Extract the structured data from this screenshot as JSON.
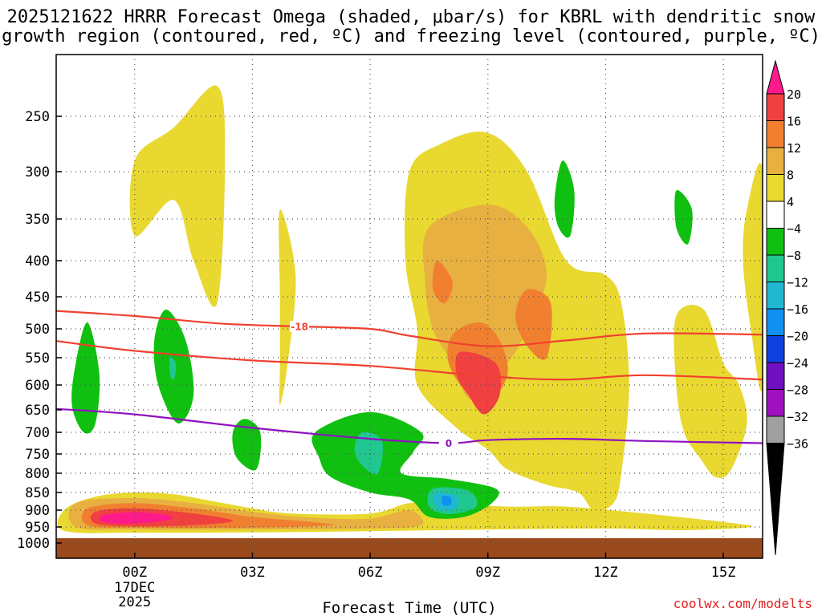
{
  "chart_data": {
    "type": "heatmap",
    "title_line1": "2025121622 HRRR Forecast Omega (shaded, μbar/s) for KBRL with dendritic snow",
    "title_line2": "growth region (contoured, red, ºC) and freezing level (contoured, purple, ºC)",
    "xlabel": "Forecast Time (UTC)",
    "credit": "coolwx.com/modelts",
    "x_range_hours": [
      -2,
      16
    ],
    "x_ticks": [
      {
        "hour": 0,
        "label": "00Z",
        "sub1": "17DEC",
        "sub2": "2025"
      },
      {
        "hour": 3,
        "label": "03Z"
      },
      {
        "hour": 6,
        "label": "06Z"
      },
      {
        "hour": 9,
        "label": "09Z"
      },
      {
        "hour": 12,
        "label": "12Z"
      },
      {
        "hour": 15,
        "label": "15Z"
      }
    ],
    "y_ticks_mb": [
      250,
      300,
      350,
      400,
      450,
      500,
      550,
      600,
      650,
      700,
      750,
      800,
      850,
      900,
      950,
      1000
    ],
    "y_range_mb": [
      200,
      1000
    ],
    "surface_pressure_mb": 985,
    "colorbar": {
      "labels": [
        "20",
        "16",
        "12",
        "8",
        "4",
        "−4",
        "−8",
        "−12",
        "−16",
        "−20",
        "−24",
        "−28",
        "−32",
        "−36"
      ],
      "colors": [
        "#ff1a8c",
        "#f04040",
        "#f08030",
        "#e8b040",
        "#e8d830",
        "#ffffff",
        "#10c010",
        "#20c890",
        "#20b8d0",
        "#1090f0",
        "#1040e0",
        "#7010c0",
        "#a010c0",
        "#a0a0a0",
        "#000000"
      ]
    },
    "contours": [
      {
        "name": "dgz-top",
        "label": "-18",
        "color": "#f04030",
        "points": [
          [
            -2,
            472
          ],
          [
            0,
            480
          ],
          [
            2,
            491
          ],
          [
            3,
            494
          ],
          [
            4,
            496
          ],
          [
            6,
            500
          ],
          [
            7,
            512
          ],
          [
            9,
            530
          ],
          [
            11,
            520
          ],
          [
            13,
            508
          ],
          [
            16,
            510
          ]
        ]
      },
      {
        "name": "dgz-bottom",
        "label": "",
        "color": "#f04030",
        "points": [
          [
            -2,
            521
          ],
          [
            0,
            538
          ],
          [
            3,
            555
          ],
          [
            6,
            565
          ],
          [
            9,
            584
          ],
          [
            11,
            590
          ],
          [
            13,
            582
          ],
          [
            16,
            590
          ]
        ]
      },
      {
        "name": "freezing-level",
        "label": "0",
        "color": "#9010c0",
        "points": [
          [
            -2,
            648
          ],
          [
            0,
            660
          ],
          [
            3,
            690
          ],
          [
            6,
            715
          ],
          [
            8,
            725
          ],
          [
            9,
            718
          ],
          [
            11,
            715
          ],
          [
            13,
            720
          ],
          [
            16,
            725
          ]
        ]
      }
    ],
    "shaded_regions": [
      {
        "omega_range": "4 to 8",
        "color": "#e8d830",
        "points": [
          [
            0,
            290
          ],
          [
            1,
            260
          ],
          [
            2.1,
            220
          ],
          [
            2.3,
            290
          ],
          [
            2.1,
            460
          ],
          [
            1.5,
            400
          ],
          [
            1,
            330
          ],
          [
            0,
            370
          ]
        ]
      },
      {
        "omega_range": "4 to 8",
        "color": "#e8d830",
        "points": [
          [
            3.7,
            340
          ],
          [
            4.1,
            420
          ],
          [
            3.9,
            560
          ],
          [
            3.7,
            640
          ],
          [
            3.7,
            560
          ],
          [
            3.7,
            450
          ]
        ]
      },
      {
        "omega_range": "4 to 8",
        "color": "#e8d830",
        "points": [
          [
            7,
            300
          ],
          [
            7.8,
            275
          ],
          [
            9,
            265
          ],
          [
            10,
            300
          ],
          [
            11,
            400
          ],
          [
            12,
            420
          ],
          [
            12.4,
            460
          ],
          [
            12.6,
            600
          ],
          [
            12.4,
            800
          ],
          [
            12.2,
            880
          ],
          [
            11.7,
            900
          ],
          [
            11.3,
            850
          ],
          [
            10.5,
            830
          ],
          [
            9.5,
            790
          ],
          [
            9,
            740
          ],
          [
            8.2,
            690
          ],
          [
            7.2,
            600
          ],
          [
            7.2,
            500
          ],
          [
            6.9,
            400
          ]
        ]
      },
      {
        "omega_range": "4 to 8",
        "color": "#e8d830",
        "points": [
          [
            -1.8,
            900
          ],
          [
            -1,
            862
          ],
          [
            0,
            850
          ],
          [
            1,
            855
          ],
          [
            2,
            875
          ],
          [
            3,
            895
          ],
          [
            4,
            910
          ],
          [
            6,
            910
          ],
          [
            7,
            880
          ],
          [
            8,
            880
          ],
          [
            9.5,
            890
          ],
          [
            11,
            890
          ],
          [
            13,
            910
          ],
          [
            15,
            935
          ],
          [
            15.7,
            950
          ],
          [
            14,
            960
          ],
          [
            12,
            955
          ],
          [
            9,
            958
          ],
          [
            6,
            963
          ],
          [
            3,
            967
          ],
          [
            0,
            968
          ],
          [
            -1.8,
            962
          ]
        ]
      },
      {
        "omega_range": "4 to 8",
        "color": "#e8d830",
        "points": [
          [
            13.8,
            480
          ],
          [
            14.5,
            470
          ],
          [
            15,
            560
          ],
          [
            15.4,
            600
          ],
          [
            15.6,
            680
          ],
          [
            15.2,
            790
          ],
          [
            14.8,
            810
          ],
          [
            14.4,
            760
          ],
          [
            14,
            700
          ],
          [
            13.8,
            600
          ]
        ]
      },
      {
        "omega_range": "4 to 8",
        "color": "#e8d830",
        "points": [
          [
            15.6,
            340
          ],
          [
            16,
            300
          ],
          [
            16,
            600
          ],
          [
            15.7,
            500
          ],
          [
            15.5,
            400
          ]
        ]
      },
      {
        "omega_range": "8 to 12",
        "color": "#e8b040",
        "points": [
          [
            7.5,
            360
          ],
          [
            9,
            335
          ],
          [
            10,
            360
          ],
          [
            10.5,
            420
          ],
          [
            10,
            500
          ],
          [
            9.5,
            560
          ],
          [
            8.6,
            630
          ],
          [
            8.1,
            560
          ],
          [
            7.6,
            500
          ],
          [
            7.4,
            430
          ]
        ]
      },
      {
        "omega_range": "8 to 12",
        "color": "#e8b040",
        "points": [
          [
            -1.5,
            880
          ],
          [
            0,
            866
          ],
          [
            1.5,
            880
          ],
          [
            3,
            905
          ],
          [
            4.5,
            922
          ],
          [
            6,
            925
          ],
          [
            7,
            900
          ],
          [
            7.3,
            945
          ],
          [
            6,
            955
          ],
          [
            3,
            958
          ],
          [
            0,
            958
          ],
          [
            -1.5,
            950
          ]
        ]
      },
      {
        "omega_range": "12 to 16",
        "color": "#f08030",
        "points": [
          [
            10,
            440
          ],
          [
            10.6,
            460
          ],
          [
            10.5,
            550
          ],
          [
            10,
            530
          ],
          [
            9.7,
            480
          ]
        ]
      },
      {
        "omega_range": "12 to 16",
        "color": "#f08030",
        "points": [
          [
            8.1,
            510
          ],
          [
            8.8,
            490
          ],
          [
            9.3,
            520
          ],
          [
            9.5,
            580
          ],
          [
            9,
            640
          ],
          [
            8.5,
            620
          ],
          [
            8,
            560
          ]
        ]
      },
      {
        "omega_range": "12 to 16",
        "color": "#f08030",
        "points": [
          [
            -1.2,
            895
          ],
          [
            0,
            880
          ],
          [
            1.5,
            895
          ],
          [
            3,
            920
          ],
          [
            4.5,
            935
          ],
          [
            5,
            945
          ],
          [
            3,
            952
          ],
          [
            0,
            952
          ],
          [
            -1.2,
            945
          ]
        ]
      },
      {
        "omega_range": "12 to 16",
        "color": "#f08030",
        "points": [
          [
            7.7,
            400
          ],
          [
            8.1,
            430
          ],
          [
            7.9,
            460
          ],
          [
            7.6,
            440
          ]
        ]
      },
      {
        "omega_range": "16 to 20",
        "color": "#f04040",
        "points": [
          [
            8.3,
            540
          ],
          [
            9.2,
            560
          ],
          [
            9.3,
            620
          ],
          [
            8.9,
            660
          ],
          [
            8.5,
            620
          ],
          [
            8.2,
            580
          ]
        ]
      },
      {
        "omega_range": "16 to 20",
        "color": "#f04040",
        "points": [
          [
            -1,
            905
          ],
          [
            0,
            895
          ],
          [
            1.5,
            910
          ],
          [
            2.5,
            932
          ],
          [
            1.5,
            945
          ],
          [
            0,
            948
          ],
          [
            -1,
            940
          ]
        ]
      },
      {
        "omega_range": "20+",
        "color": "#ff1a8c",
        "points": [
          [
            -0.8,
            915
          ],
          [
            0,
            906
          ],
          [
            0.8,
            914
          ],
          [
            0.9,
            928
          ],
          [
            0,
            940
          ],
          [
            -0.8,
            935
          ]
        ]
      },
      {
        "omega_range": "-4 to -8",
        "color": "#10c010",
        "points": [
          [
            -1.2,
            490
          ],
          [
            -0.9,
            580
          ],
          [
            -1,
            680
          ],
          [
            -1.3,
            700
          ],
          [
            -1.6,
            640
          ],
          [
            -1.5,
            560
          ]
        ]
      },
      {
        "omega_range": "-4 to -8",
        "color": "#10c010",
        "points": [
          [
            0.8,
            470
          ],
          [
            1.3,
            520
          ],
          [
            1.5,
            620
          ],
          [
            1.1,
            680
          ],
          [
            0.6,
            600
          ],
          [
            0.5,
            520
          ]
        ]
      },
      {
        "omega_range": "-4 to -8",
        "color": "#10c010",
        "points": [
          [
            2.8,
            670
          ],
          [
            3.2,
            700
          ],
          [
            3.1,
            790
          ],
          [
            2.6,
            760
          ],
          [
            2.5,
            700
          ]
        ]
      },
      {
        "omega_range": "-4 to -8",
        "color": "#10c010",
        "points": [
          [
            4.6,
            700
          ],
          [
            6,
            655
          ],
          [
            7.3,
            700
          ],
          [
            7.1,
            745
          ],
          [
            6.8,
            800
          ],
          [
            8,
            815
          ],
          [
            9.2,
            840
          ],
          [
            9.1,
            880
          ],
          [
            8.4,
            920
          ],
          [
            7.5,
            920
          ],
          [
            7,
            870
          ],
          [
            6,
            850
          ],
          [
            5,
            810
          ],
          [
            4.7,
            760
          ]
        ]
      },
      {
        "omega_range": "-4 to -8",
        "color": "#10c010",
        "points": [
          [
            10.9,
            290
          ],
          [
            11.2,
            320
          ],
          [
            11.1,
            370
          ],
          [
            10.8,
            360
          ],
          [
            10.7,
            330
          ]
        ]
      },
      {
        "omega_range": "-4 to -8",
        "color": "#10c010",
        "points": [
          [
            13.8,
            320
          ],
          [
            14.2,
            340
          ],
          [
            14.1,
            380
          ],
          [
            13.8,
            360
          ]
        ]
      },
      {
        "omega_range": "-8 to -12",
        "color": "#20c890",
        "points": [
          [
            5.8,
            700
          ],
          [
            6.3,
            720
          ],
          [
            6.2,
            800
          ],
          [
            5.8,
            780
          ],
          [
            5.6,
            740
          ]
        ]
      },
      {
        "omega_range": "-8 to -12",
        "color": "#20c890",
        "points": [
          [
            7.6,
            840
          ],
          [
            8.5,
            845
          ],
          [
            8.7,
            890
          ],
          [
            8,
            912
          ],
          [
            7.5,
            890
          ]
        ]
      },
      {
        "omega_range": "-8 to -12",
        "color": "#20c890",
        "points": [
          [
            0.9,
            550
          ],
          [
            1.05,
            560
          ],
          [
            1,
            590
          ],
          [
            0.9,
            580
          ]
        ]
      },
      {
        "omega_range": "-12 to -16",
        "color": "#20b8d0",
        "points": [
          [
            7.7,
            850
          ],
          [
            8.2,
            860
          ],
          [
            8.2,
            895
          ],
          [
            7.8,
            900
          ],
          [
            7.6,
            870
          ]
        ]
      },
      {
        "omega_range": "-16 to -20",
        "color": "#1090f0",
        "points": [
          [
            7.85,
            860
          ],
          [
            8.05,
            865
          ],
          [
            8.05,
            885
          ],
          [
            7.85,
            885
          ]
        ]
      }
    ]
  }
}
